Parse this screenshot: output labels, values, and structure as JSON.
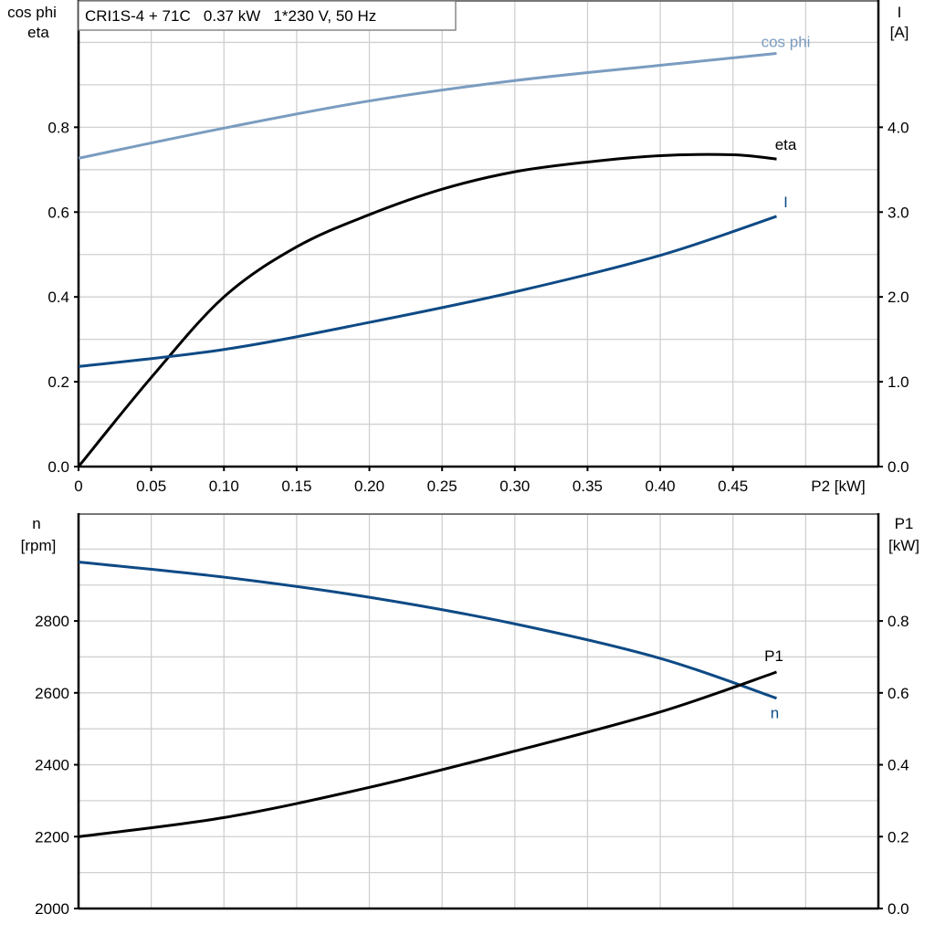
{
  "chart_data": [
    {
      "type": "line",
      "title": "CRI1S-4 + 71C   0.37 kW   1*230 V, 50 Hz",
      "xlabel": "P2 [kW]",
      "ylabel_left": [
        "cos phi",
        "eta"
      ],
      "ylabel_right": [
        "I",
        "[A]"
      ],
      "xlim": [
        0,
        0.55
      ],
      "ylim_left": [
        0,
        1.1
      ],
      "ylim_right": [
        0,
        5.5
      ],
      "x_ticks": [
        "0",
        "0.05",
        "0.10",
        "0.15",
        "0.20",
        "0.25",
        "0.30",
        "0.35",
        "0.40",
        "0.45"
      ],
      "y_ticks_left": [
        "0.0",
        "0.2",
        "0.4",
        "0.6",
        "0.8"
      ],
      "y_ticks_right": [
        "0.0",
        "1.0",
        "2.0",
        "3.0",
        "4.0"
      ],
      "grid": true,
      "series": [
        {
          "name": "cos phi",
          "axis": "left",
          "color": "#7a9cc0",
          "x": [
            0,
            0.1,
            0.2,
            0.3,
            0.4,
            0.48
          ],
          "values": [
            0.727,
            0.798,
            0.862,
            0.91,
            0.946,
            0.974
          ]
        },
        {
          "name": "eta",
          "axis": "left",
          "color": "#000000",
          "x": [
            0,
            0.05,
            0.1,
            0.15,
            0.2,
            0.25,
            0.3,
            0.35,
            0.4,
            0.45,
            0.48
          ],
          "values": [
            0,
            0.21,
            0.4,
            0.518,
            0.594,
            0.654,
            0.695,
            0.718,
            0.733,
            0.735,
            0.725
          ]
        },
        {
          "name": "I",
          "axis": "right",
          "color": "#0e4a85",
          "x": [
            0,
            0.1,
            0.2,
            0.3,
            0.4,
            0.48
          ],
          "values": [
            1.18,
            1.38,
            1.7,
            2.06,
            2.49,
            2.95
          ]
        }
      ]
    },
    {
      "type": "line",
      "xlim": [
        0,
        0.55
      ],
      "ylabel_left": [
        "n",
        "[rpm]"
      ],
      "ylabel_right": [
        "P1",
        "[kW]"
      ],
      "ylim_left": [
        2000,
        3100
      ],
      "ylim_right": [
        0,
        1.1
      ],
      "y_ticks_left": [
        "2000",
        "2200",
        "2400",
        "2600",
        "2800"
      ],
      "y_ticks_right": [
        "0.0",
        "0.2",
        "0.4",
        "0.6",
        "0.8"
      ],
      "grid": true,
      "series": [
        {
          "name": "n",
          "axis": "left",
          "color": "#0e4a85",
          "x": [
            0,
            0.1,
            0.2,
            0.3,
            0.4,
            0.48
          ],
          "values": [
            2964,
            2922,
            2866,
            2792,
            2696,
            2585
          ]
        },
        {
          "name": "P1",
          "axis": "right",
          "color": "#000000",
          "x": [
            0,
            0.1,
            0.2,
            0.3,
            0.4,
            0.48
          ],
          "values": [
            0.2,
            0.253,
            0.337,
            0.438,
            0.547,
            0.658
          ]
        }
      ]
    }
  ]
}
